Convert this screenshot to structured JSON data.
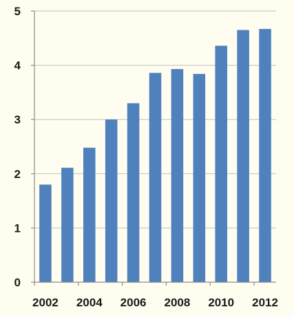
{
  "chart_data": {
    "type": "bar",
    "title": "",
    "xlabel": "",
    "ylabel": "",
    "categories": [
      "2002",
      "2003",
      "2004",
      "2005",
      "2006",
      "2007",
      "2008",
      "2009",
      "2010",
      "2011",
      "2012"
    ],
    "values": [
      1.8,
      2.11,
      2.48,
      3.0,
      3.3,
      3.86,
      3.93,
      3.84,
      4.36,
      4.65,
      4.67
    ],
    "x_tick_labels": [
      "2002",
      "2004",
      "2006",
      "2008",
      "2010",
      "2012"
    ],
    "y_ticks": [
      "0",
      "1",
      "2",
      "3",
      "4",
      "5"
    ],
    "ylim": [
      0,
      5
    ],
    "grid": "horizontal",
    "legend": "none",
    "colors": {
      "bar": "#4f81bd",
      "grid": "#bfbfbf",
      "axis": "#8c8c8c",
      "background": "#fffdf0"
    }
  }
}
